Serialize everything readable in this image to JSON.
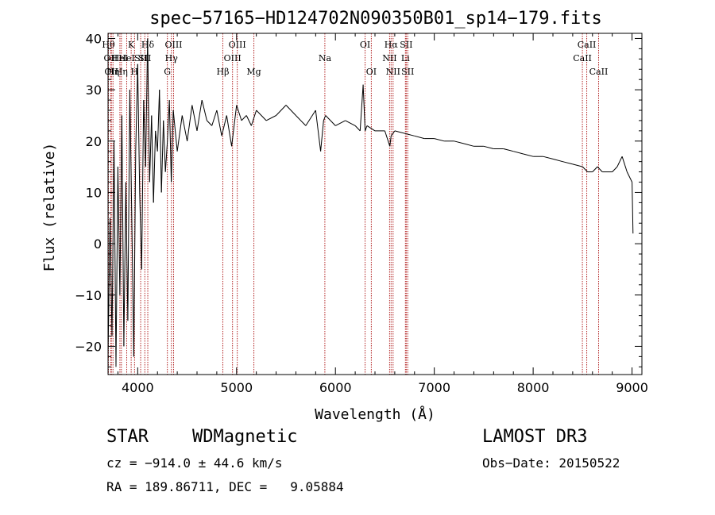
{
  "chart_data": {
    "type": "line",
    "title": "spec−57165−HD124702N090350B01_sp14−179.fits",
    "xlabel": "Wavelength (Å)",
    "ylabel": "Flux (relative)",
    "xlim": [
      3700,
      9100
    ],
    "ylim": [
      -25.5,
      41
    ],
    "x_ticks": [
      4000,
      5000,
      6000,
      7000,
      8000,
      9000
    ],
    "x_tick_labels": [
      "4000",
      "5000",
      "6000",
      "7000",
      "8000",
      "9000"
    ],
    "y_ticks": [
      -20,
      -10,
      0,
      10,
      20,
      30,
      40
    ],
    "y_tick_labels": [
      "−20",
      "−10",
      "0",
      "10",
      "20",
      "30",
      "40"
    ],
    "grid": false,
    "line_color": "#000000",
    "marker_color": "#b22222",
    "spectrum": {
      "name": "flux",
      "x": [
        3700,
        3720,
        3740,
        3760,
        3780,
        3800,
        3820,
        3840,
        3860,
        3880,
        3900,
        3920,
        3940,
        3960,
        3980,
        4000,
        4020,
        4040,
        4060,
        4080,
        4100,
        4120,
        4140,
        4160,
        4180,
        4200,
        4220,
        4240,
        4260,
        4280,
        4300,
        4320,
        4340,
        4360,
        4380,
        4400,
        4450,
        4500,
        4550,
        4600,
        4650,
        4700,
        4750,
        4800,
        4850,
        4900,
        4950,
        5000,
        5050,
        5100,
        5150,
        5200,
        5300,
        5400,
        5500,
        5600,
        5700,
        5800,
        5850,
        5880,
        5900,
        5950,
        6000,
        6100,
        6200,
        6250,
        6280,
        6300,
        6320,
        6400,
        6500,
        6550,
        6563,
        6600,
        6700,
        6800,
        6900,
        7000,
        7100,
        7200,
        7300,
        7400,
        7500,
        7600,
        7700,
        7800,
        7900,
        8000,
        8100,
        8200,
        8300,
        8400,
        8500,
        8550,
        8600,
        8650,
        8700,
        8800,
        8850,
        8900,
        8950,
        9000,
        9010
      ],
      "values": [
        -22,
        5,
        -18,
        20,
        -24,
        15,
        -10,
        25,
        -20,
        12,
        -15,
        30,
        5,
        -22,
        18,
        35,
        10,
        -5,
        28,
        15,
        40,
        12,
        25,
        8,
        22,
        18,
        30,
        10,
        24,
        14,
        20,
        28,
        12,
        26,
        22,
        18,
        25,
        20,
        27,
        22,
        28,
        24,
        23,
        26,
        21,
        25,
        19,
        27,
        24,
        25,
        23,
        26,
        24,
        25,
        27,
        25,
        23,
        26,
        18,
        24,
        25,
        24,
        23,
        24,
        23,
        22,
        31,
        22,
        23,
        22,
        22,
        19,
        21,
        22,
        21.5,
        21,
        20.5,
        20.5,
        20,
        20,
        19.5,
        19,
        19,
        18.5,
        18.5,
        18,
        17.5,
        17,
        17,
        16.5,
        16,
        15.5,
        15,
        14,
        14,
        15,
        14,
        14,
        15,
        17,
        14,
        12,
        2
      ]
    },
    "line_markers": [
      {
        "w": 3704,
        "label": "Hθ",
        "row": 0
      },
      {
        "w": 3727,
        "label": "OII",
        "row": 1
      },
      {
        "w": 3734,
        "label": "OII",
        "row": 2
      },
      {
        "w": 3750,
        "label": "Hη",
        "row": 2
      },
      {
        "w": 3820,
        "label": "HeI",
        "row": 1
      },
      {
        "w": 3835,
        "label": "Hη",
        "row": 2
      },
      {
        "w": 3889,
        "label": "HeI",
        "row": 1
      },
      {
        "w": 3934,
        "label": "K",
        "row": 0
      },
      {
        "w": 3968,
        "label": "H",
        "row": 2
      },
      {
        "w": 4030,
        "label": "SII",
        "row": 1
      },
      {
        "w": 4072,
        "label": "SII",
        "row": 1
      },
      {
        "w": 4102,
        "label": "Hδ",
        "row": 0
      },
      {
        "w": 4300,
        "label": "G",
        "row": 2
      },
      {
        "w": 4341,
        "label": "Hγ",
        "row": 1
      },
      {
        "w": 4363,
        "label": "OIII",
        "row": 0
      },
      {
        "w": 4861,
        "label": "Hβ",
        "row": 2
      },
      {
        "w": 4959,
        "label": "OIII",
        "row": 1
      },
      {
        "w": 5007,
        "label": "OIII",
        "row": 0
      },
      {
        "w": 5175,
        "label": "Mg",
        "row": 2
      },
      {
        "w": 5893,
        "label": "Na",
        "row": 1
      },
      {
        "w": 6300,
        "label": "OI",
        "row": 0
      },
      {
        "w": 6363,
        "label": "OI",
        "row": 2
      },
      {
        "w": 6548,
        "label": "NII",
        "row": 1
      },
      {
        "w": 6563,
        "label": "Hα",
        "row": 0
      },
      {
        "w": 6583,
        "label": "NII",
        "row": 2
      },
      {
        "w": 6708,
        "label": "Li",
        "row": 1
      },
      {
        "w": 6716,
        "label": "SII",
        "row": 0
      },
      {
        "w": 6731,
        "label": "SII",
        "row": 2
      },
      {
        "w": 8498,
        "label": "CaII",
        "row": 1
      },
      {
        "w": 8542,
        "label": "CaII",
        "row": 0
      },
      {
        "w": 8662,
        "label": "CaII",
        "row": 2
      }
    ]
  },
  "info": {
    "object_class": "STAR",
    "subclass": "WDMagnetic",
    "survey": "LAMOST DR3",
    "redshift": "cz = −914.0 ± 44.6 km/s",
    "obs_date": "Obs−Date: 20150522",
    "coords": "RA = 189.86711, DEC =   9.05884"
  }
}
